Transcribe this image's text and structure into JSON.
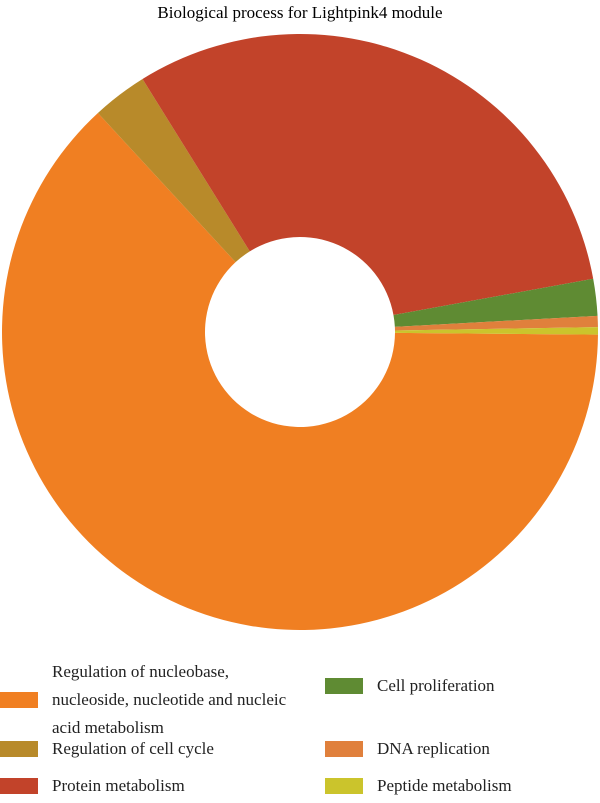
{
  "chart_data": {
    "type": "donut",
    "title": "Biological process for Lightpink4 module",
    "categories": [
      "Regulation of nucleobase, nucleoside, nucleotide and nucleic acid metabolism",
      "Regulation of cell cycle",
      "Protein metabolism",
      "Cell proliferation",
      "DNA replication",
      "Peptide metabolism"
    ],
    "values": [
      63,
      3,
      31,
      2,
      0.6,
      0.4
    ],
    "colors": [
      "#f07f22",
      "#b88a2a",
      "#c2432a",
      "#5f8b33",
      "#e0803c",
      "#cbc42c"
    ]
  }
}
